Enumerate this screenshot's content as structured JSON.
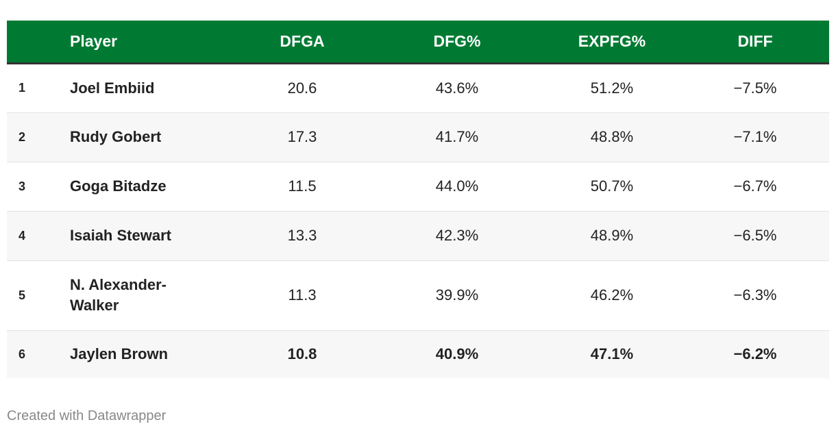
{
  "colors": {
    "header_bg": "#007a33",
    "header_text": "#ffffff",
    "row_alt": "#f7f7f7"
  },
  "columns": {
    "rank": "",
    "player": "Player",
    "dfga": "DFGA",
    "dfg_pct": "DFG%",
    "expfg_pct": "EXPFG%",
    "diff": "DIFF"
  },
  "rows": [
    {
      "rank": "1",
      "player": "Joel Embiid",
      "dfga": "20.6",
      "dfg_pct": "43.6%",
      "expfg_pct": "51.2%",
      "diff": "−7.5%"
    },
    {
      "rank": "2",
      "player": "Rudy Gobert",
      "dfga": "17.3",
      "dfg_pct": "41.7%",
      "expfg_pct": "48.8%",
      "diff": "−7.1%"
    },
    {
      "rank": "3",
      "player": "Goga Bitadze",
      "dfga": "11.5",
      "dfg_pct": "44.0%",
      "expfg_pct": "50.7%",
      "diff": "−6.7%"
    },
    {
      "rank": "4",
      "player": "Isaiah Stewart",
      "dfga": "13.3",
      "dfg_pct": "42.3%",
      "expfg_pct": "48.9%",
      "diff": "−6.5%"
    },
    {
      "rank": "5",
      "player": "N. Alexander-Walker",
      "dfga": "11.3",
      "dfg_pct": "39.9%",
      "expfg_pct": "46.2%",
      "diff": "−6.3%"
    },
    {
      "rank": "6",
      "player": "Jaylen Brown",
      "dfga": "10.8",
      "dfg_pct": "40.9%",
      "expfg_pct": "47.1%",
      "diff": "−6.2%"
    }
  ],
  "footer": {
    "credit": "Created with Datawrapper"
  }
}
